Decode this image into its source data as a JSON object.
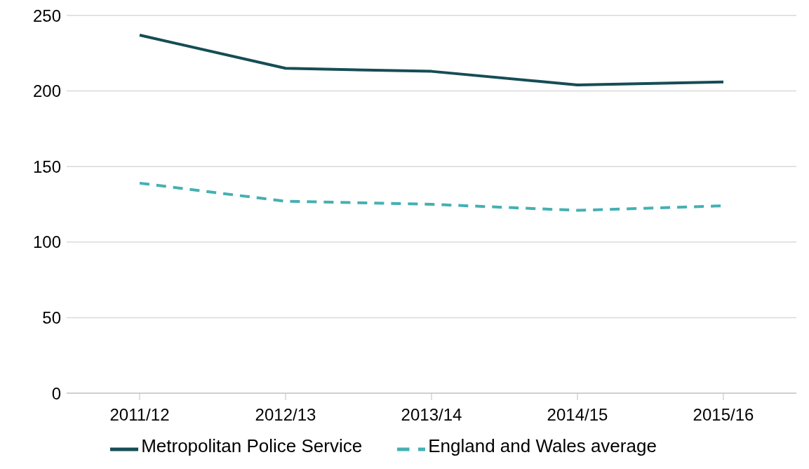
{
  "chart_data": {
    "type": "line",
    "categories": [
      "2011/12",
      "2012/13",
      "2013/14",
      "2014/15",
      "2015/16"
    ],
    "series": [
      {
        "name": "Metropolitan Police Service",
        "color": "#154d55",
        "values": [
          237,
          215,
          213,
          204,
          206
        ],
        "line_style": "solid"
      },
      {
        "name": "England and Wales average",
        "color": "#45b0b3",
        "values": [
          139,
          127,
          125,
          121,
          124
        ],
        "line_style": "dashed"
      }
    ],
    "ylim": [
      0,
      250
    ],
    "yticks": [
      0,
      50,
      100,
      150,
      200,
      250
    ],
    "grid": "y",
    "legend": "bottom",
    "marker": "none"
  }
}
